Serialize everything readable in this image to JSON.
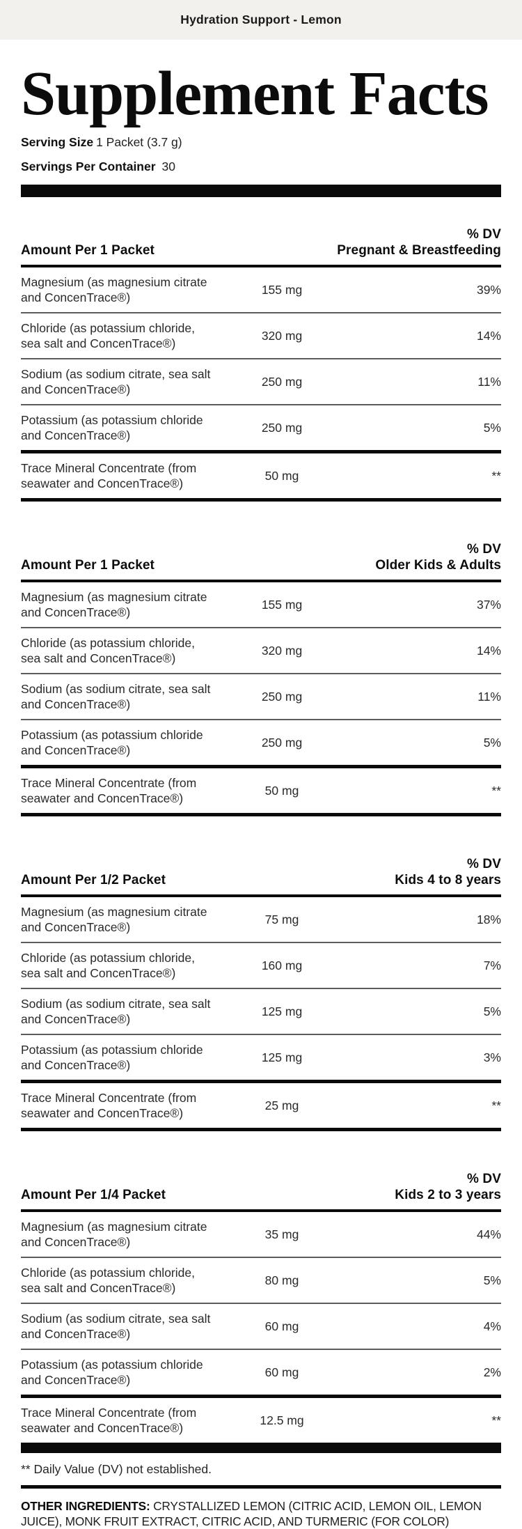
{
  "banner": {
    "title": "Hydration Support - Lemon"
  },
  "title": "Supplement Facts",
  "serving": {
    "size_label": "Serving Size",
    "size_value": "1 Packet (3.7 g)",
    "per_container_label": "Servings Per Container",
    "per_container_value": "30"
  },
  "sections": [
    {
      "amount_label": "Amount Per 1 Packet",
      "dv_label": "% DV",
      "group_label": "Pregnant & Breastfeeding",
      "rows": [
        {
          "line1": "Magnesium (as magnesium citrate",
          "line2": "and ConcenTrace®)",
          "amount": "155 mg",
          "dv": "39%"
        },
        {
          "line1": "Chloride (as potassium chloride,",
          "line2": "sea salt and ConcenTrace®)",
          "amount": "320 mg",
          "dv": "14%"
        },
        {
          "line1": "Sodium (as sodium citrate, sea salt",
          "line2": "and ConcenTrace®)",
          "amount": "250 mg",
          "dv": "11%"
        },
        {
          "line1": "Potassium (as potassium chloride",
          "line2": "and ConcenTrace®)",
          "amount": "250 mg",
          "dv": "5%"
        },
        {
          "line1": "Trace Mineral Concentrate (from",
          "line2": "seawater and ConcenTrace®)",
          "amount": "50 mg",
          "dv": "**"
        }
      ]
    },
    {
      "amount_label": "Amount Per 1 Packet",
      "dv_label": "% DV",
      "group_label": "Older Kids & Adults",
      "rows": [
        {
          "line1": "Magnesium (as magnesium citrate",
          "line2": "and ConcenTrace®)",
          "amount": "155 mg",
          "dv": "37%"
        },
        {
          "line1": "Chloride (as potassium chloride,",
          "line2": "sea salt and ConcenTrace®)",
          "amount": "320 mg",
          "dv": "14%"
        },
        {
          "line1": "Sodium (as sodium citrate, sea salt",
          "line2": "and ConcenTrace®)",
          "amount": "250 mg",
          "dv": "11%"
        },
        {
          "line1": "Potassium (as potassium chloride",
          "line2": "and ConcenTrace®)",
          "amount": "250 mg",
          "dv": "5%"
        },
        {
          "line1": "Trace Mineral Concentrate (from",
          "line2": "seawater and ConcenTrace®)",
          "amount": "50 mg",
          "dv": "**"
        }
      ]
    },
    {
      "amount_label": "Amount Per 1/2 Packet",
      "dv_label": "% DV",
      "group_label": "Kids 4 to 8 years",
      "rows": [
        {
          "line1": "Magnesium (as magnesium citrate",
          "line2": "and ConcenTrace®)",
          "amount": "75 mg",
          "dv": "18%"
        },
        {
          "line1": "Chloride (as potassium chloride,",
          "line2": "sea salt and ConcenTrace®)",
          "amount": "160 mg",
          "dv": "7%"
        },
        {
          "line1": "Sodium (as sodium citrate, sea salt",
          "line2": "and ConcenTrace®)",
          "amount": "125 mg",
          "dv": "5%"
        },
        {
          "line1": "Potassium (as potassium chloride",
          "line2": "and ConcenTrace®)",
          "amount": "125 mg",
          "dv": "3%"
        },
        {
          "line1": "Trace Mineral Concentrate (from",
          "line2": "seawater and ConcenTrace®)",
          "amount": "25 mg",
          "dv": "**"
        }
      ]
    },
    {
      "amount_label": "Amount Per 1/4 Packet",
      "dv_label": "% DV",
      "group_label": "Kids 2 to 3 years",
      "rows": [
        {
          "line1": "Magnesium (as magnesium citrate",
          "line2": "and ConcenTrace®)",
          "amount": "35 mg",
          "dv": "44%"
        },
        {
          "line1": "Chloride (as potassium chloride,",
          "line2": "sea salt and ConcenTrace®)",
          "amount": "80 mg",
          "dv": "5%"
        },
        {
          "line1": "Sodium (as sodium citrate, sea salt",
          "line2": "and ConcenTrace®)",
          "amount": "60 mg",
          "dv": "4%"
        },
        {
          "line1": "Potassium (as potassium chloride",
          "line2": "and ConcenTrace®)",
          "amount": "60 mg",
          "dv": "2%"
        },
        {
          "line1": "Trace Mineral Concentrate (from",
          "line2": "seawater and ConcenTrace®)",
          "amount": "12.5 mg",
          "dv": "**"
        }
      ]
    }
  ],
  "footnote": "** Daily Value (DV) not established.",
  "other_ingredients": {
    "label": "OTHER INGREDIENTS:",
    "text": " CRYSTALLIZED LEMON (CITRIC ACID, LEMON OIL, LEMON JUICE), MONK FRUIT EXTRACT, CITRIC ACID, AND TURMERIC (FOR COLOR)"
  },
  "colors": {
    "banner_bg": "#f2f1ee",
    "rule_black": "#0a0a0a",
    "rule_gray": "#5c5c5c",
    "text": "#232323"
  }
}
